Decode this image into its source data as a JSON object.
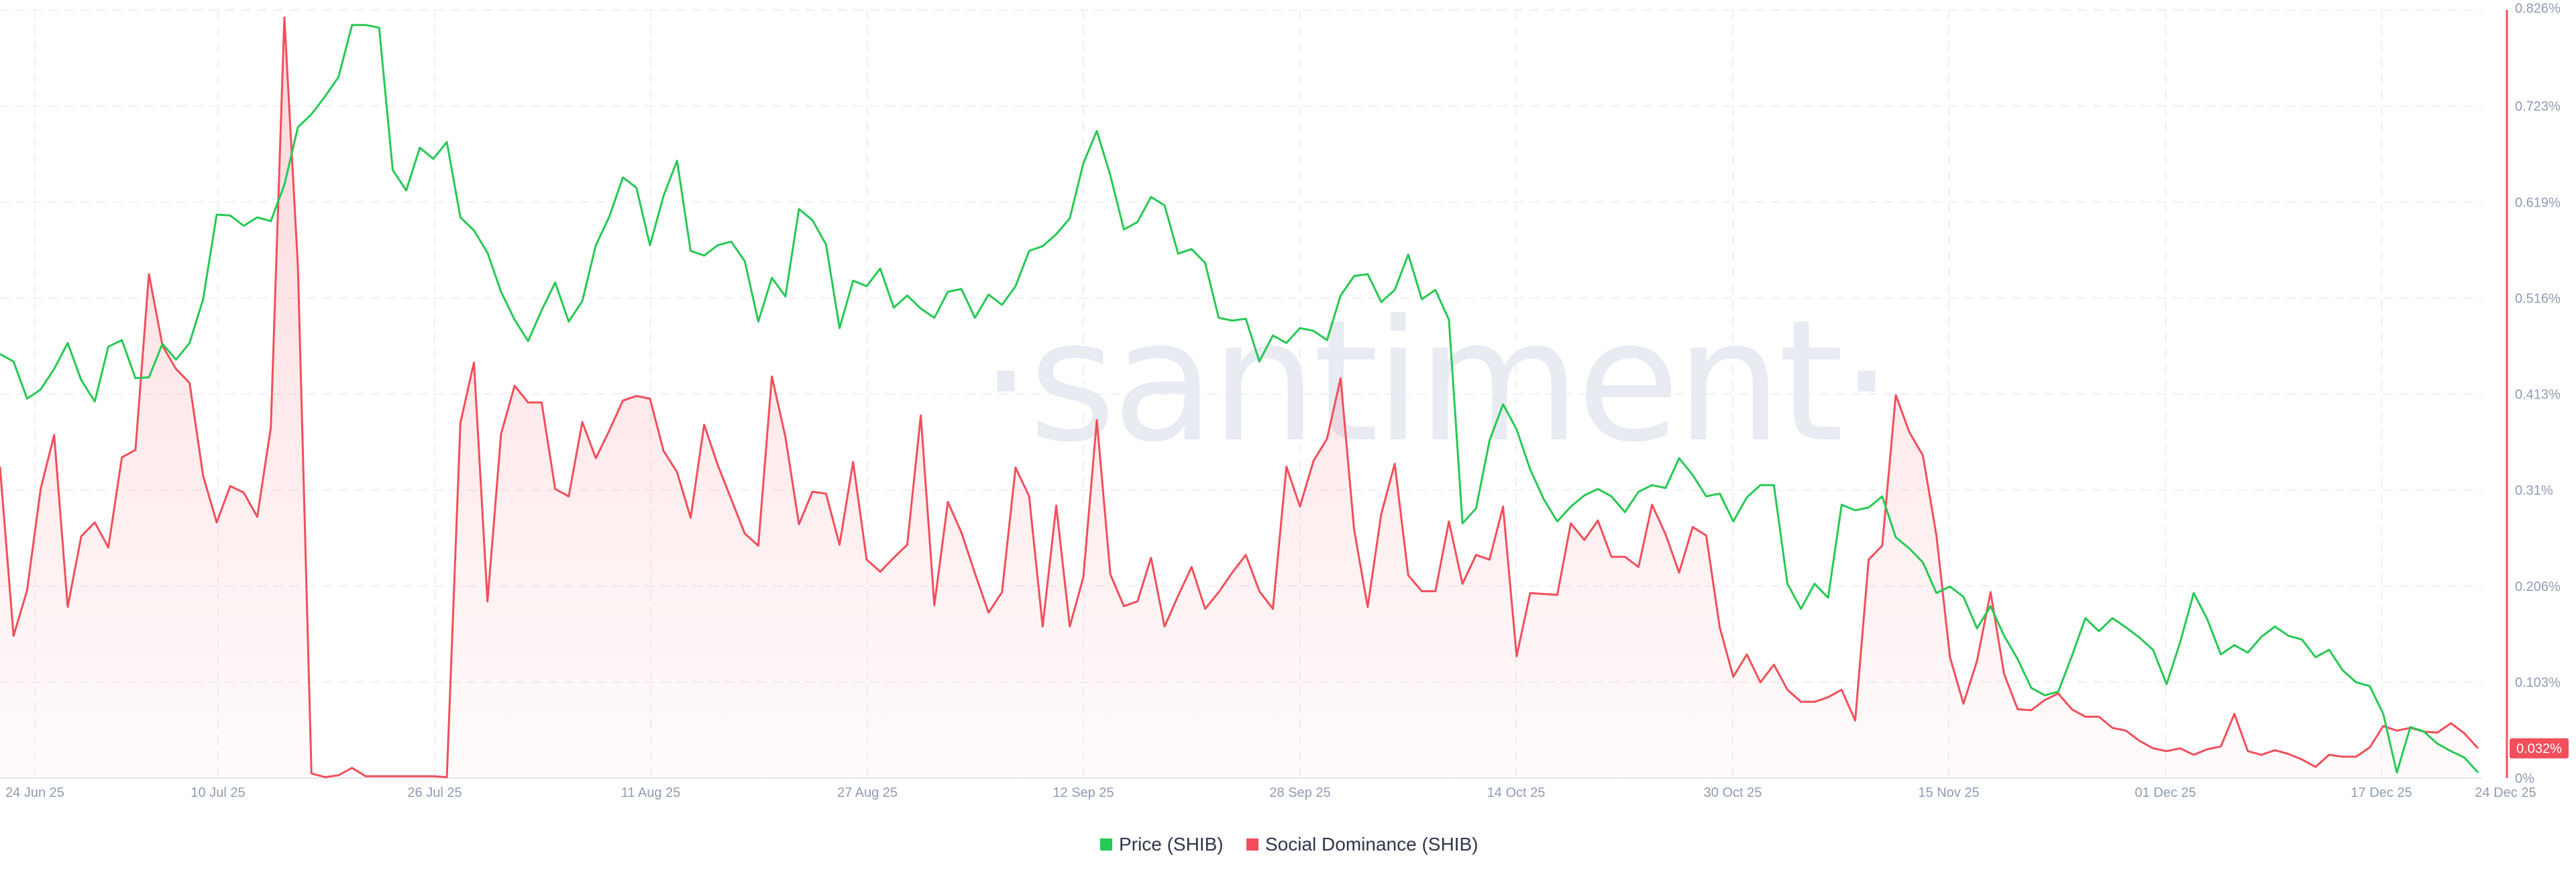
{
  "chart_data": {
    "type": "line",
    "watermark": "·santiment·",
    "colors": {
      "price": "#26c953",
      "social": "#f24e5b",
      "badge": "#f24e5b"
    },
    "x_ticks": [
      "24 Jun 25",
      "10 Jul 25",
      "26 Jul 25",
      "11 Aug 25",
      "27 Aug 25",
      "12 Sep 25",
      "28 Sep 25",
      "14 Oct 25",
      "30 Oct 25",
      "15 Nov 25",
      "01 Dec 25",
      "17 Dec 25",
      "24 Dec 25"
    ],
    "y_right": {
      "ticks": [
        "0%",
        "0.103%",
        "0.206%",
        "0.31%",
        "0.413%",
        "0.516%",
        "0.619%",
        "0.723%",
        "0.826%"
      ],
      "ylim": [
        0,
        0.826
      ],
      "unit": "%"
    },
    "current_value_badge": "0.032%",
    "legend": [
      {
        "name": "Price (SHIB)",
        "color": "#26c953"
      },
      {
        "name": "Social Dominance (SHIB)",
        "color": "#f24e5b"
      }
    ],
    "grid": true,
    "legend_position": "bottom-center",
    "series": [
      {
        "name": "Price (SHIB)",
        "axis": "hidden",
        "values": [
          0.456,
          0.448,
          0.408,
          0.418,
          0.44,
          0.468,
          0.428,
          0.405,
          0.464,
          0.471,
          0.43,
          0.431,
          0.467,
          0.45,
          0.468,
          0.515,
          0.606,
          0.605,
          0.594,
          0.603,
          0.599,
          0.638,
          0.7,
          0.714,
          0.733,
          0.754,
          0.81,
          0.81,
          0.807,
          0.654,
          0.632,
          0.678,
          0.666,
          0.684,
          0.603,
          0.589,
          0.565,
          0.523,
          0.493,
          0.47,
          0.503,
          0.533,
          0.491,
          0.513,
          0.573,
          0.604,
          0.646,
          0.635,
          0.573,
          0.626,
          0.664,
          0.567,
          0.562,
          0.573,
          0.577,
          0.556,
          0.491,
          0.538,
          0.518,
          0.612,
          0.6,
          0.574,
          0.484,
          0.535,
          0.529,
          0.548,
          0.506,
          0.519,
          0.505,
          0.495,
          0.523,
          0.526,
          0.495,
          0.52,
          0.509,
          0.529,
          0.567,
          0.572,
          0.585,
          0.602,
          0.661,
          0.696,
          0.648,
          0.59,
          0.598,
          0.625,
          0.616,
          0.564,
          0.569,
          0.554,
          0.495,
          0.492,
          0.494,
          0.448,
          0.476,
          0.468,
          0.484,
          0.481,
          0.471,
          0.519,
          0.54,
          0.542,
          0.512,
          0.525,
          0.563,
          0.515,
          0.525,
          0.493,
          0.274,
          0.29,
          0.363,
          0.402,
          0.375,
          0.332,
          0.3,
          0.276,
          0.292,
          0.304,
          0.311,
          0.303,
          0.286,
          0.308,
          0.315,
          0.312,
          0.344,
          0.326,
          0.303,
          0.306,
          0.276,
          0.302,
          0.315,
          0.315,
          0.209,
          0.182,
          0.209,
          0.194,
          0.294,
          0.288,
          0.291,
          0.303,
          0.259,
          0.247,
          0.232,
          0.199,
          0.206,
          0.195,
          0.161,
          0.185,
          0.153,
          0.128,
          0.097,
          0.089,
          0.093,
          0.131,
          0.172,
          0.158,
          0.172,
          0.162,
          0.151,
          0.138,
          0.101,
          0.146,
          0.199,
          0.171,
          0.133,
          0.143,
          0.135,
          0.152,
          0.163,
          0.153,
          0.149,
          0.13,
          0.138,
          0.116,
          0.103,
          0.099,
          0.069,
          0.006,
          0.055,
          0.05,
          0.037,
          0.029,
          0.022,
          0.006
        ]
      },
      {
        "name": "Social Dominance (SHIB)",
        "axis": "right",
        "values": [
          0.335,
          0.153,
          0.202,
          0.311,
          0.369,
          0.184,
          0.26,
          0.275,
          0.248,
          0.345,
          0.353,
          0.542,
          0.465,
          0.44,
          0.425,
          0.325,
          0.275,
          0.314,
          0.307,
          0.281,
          0.377,
          0.818,
          0.55,
          0.005,
          0.001,
          0.003,
          0.011,
          0.002,
          0.002,
          0.002,
          0.002,
          0.002,
          0.002,
          0.001,
          0.382,
          0.447,
          0.19,
          0.37,
          0.422,
          0.404,
          0.404,
          0.311,
          0.303,
          0.383,
          0.344,
          0.374,
          0.406,
          0.411,
          0.408,
          0.352,
          0.329,
          0.28,
          0.38,
          0.337,
          0.3,
          0.263,
          0.25,
          0.432,
          0.367,
          0.273,
          0.308,
          0.306,
          0.251,
          0.34,
          0.235,
          0.222,
          0.237,
          0.251,
          0.39,
          0.186,
          0.297,
          0.264,
          0.22,
          0.178,
          0.2,
          0.334,
          0.303,
          0.163,
          0.293,
          0.163,
          0.216,
          0.385,
          0.219,
          0.185,
          0.19,
          0.237,
          0.163,
          0.196,
          0.227,
          0.182,
          0.2,
          0.221,
          0.24,
          0.201,
          0.182,
          0.335,
          0.292,
          0.341,
          0.365,
          0.43,
          0.267,
          0.184,
          0.284,
          0.338,
          0.218,
          0.201,
          0.201,
          0.276,
          0.209,
          0.24,
          0.235,
          0.292,
          0.131,
          0.199,
          0.198,
          0.197,
          0.274,
          0.256,
          0.277,
          0.238,
          0.238,
          0.227,
          0.294,
          0.262,
          0.221,
          0.27,
          0.261,
          0.162,
          0.109,
          0.133,
          0.103,
          0.122,
          0.095,
          0.082,
          0.082,
          0.087,
          0.095,
          0.062,
          0.235,
          0.25,
          0.412,
          0.372,
          0.347,
          0.261,
          0.13,
          0.08,
          0.126,
          0.2,
          0.112,
          0.074,
          0.073,
          0.084,
          0.091,
          0.074,
          0.066,
          0.066,
          0.054,
          0.051,
          0.04,
          0.032,
          0.029,
          0.032,
          0.025,
          0.031,
          0.034,
          0.069,
          0.029,
          0.025,
          0.03,
          0.026,
          0.02,
          0.012,
          0.025,
          0.023,
          0.023,
          0.033,
          0.056,
          0.051,
          0.054,
          0.05,
          0.049,
          0.059,
          0.048,
          0.032
        ]
      }
    ]
  }
}
